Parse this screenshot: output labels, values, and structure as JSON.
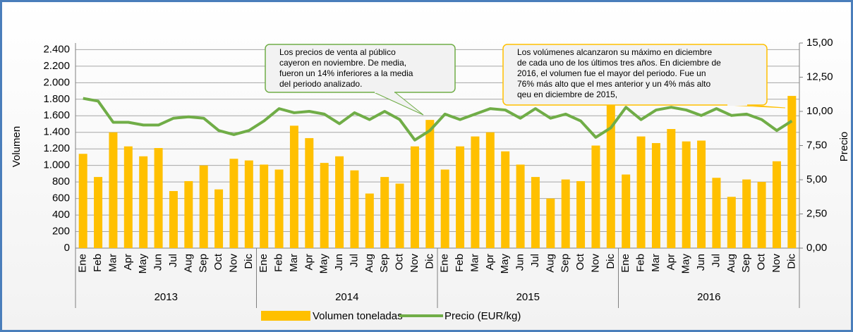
{
  "chart_data": {
    "type": "bar-line",
    "categories": [
      "Ene",
      "Feb",
      "Mar",
      "Apr",
      "May",
      "Jun",
      "Jul",
      "Aug",
      "Sep",
      "Oct",
      "Nov",
      "Dic",
      "Ene",
      "Feb",
      "Mar",
      "Apr",
      "May",
      "Jun",
      "Jul",
      "Aug",
      "Sep",
      "Oct",
      "Nov",
      "Dic",
      "Ene",
      "Feb",
      "Mar",
      "Apr",
      "May",
      "Jun",
      "Jul",
      "Aug",
      "Sep",
      "Oct",
      "Nov",
      "Dic",
      "Ene",
      "Feb",
      "Mar",
      "Apr",
      "May",
      "Jun",
      "Jul",
      "Aug",
      "Sep",
      "Oct",
      "Nov",
      "Dic"
    ],
    "years": [
      "2013",
      "2014",
      "2015",
      "2016"
    ],
    "ylabel": "Volumen",
    "y2label": "Precio",
    "series": [
      {
        "name": "Volumen toneladas",
        "type": "bar",
        "color": "#ffc000",
        "axis": "y",
        "values": [
          1140,
          860,
          1400,
          1230,
          1110,
          1210,
          690,
          810,
          1000,
          710,
          1080,
          1060,
          1010,
          950,
          1480,
          1330,
          1030,
          1110,
          940,
          660,
          860,
          780,
          1230,
          1550,
          950,
          1230,
          1350,
          1400,
          1170,
          1010,
          860,
          600,
          830,
          810,
          1240,
          1770,
          890,
          1350,
          1270,
          1440,
          1290,
          1300,
          850,
          620,
          830,
          800,
          1050,
          1840
        ]
      },
      {
        "name": "Precio (EUR/kg)",
        "type": "line",
        "color": "#70ad47",
        "axis": "y2",
        "values": [
          10.95,
          10.75,
          9.2,
          9.2,
          9.0,
          9.0,
          9.5,
          9.6,
          9.5,
          8.6,
          8.3,
          8.6,
          9.3,
          10.2,
          9.9,
          10.0,
          9.8,
          9.1,
          9.9,
          9.4,
          10.0,
          9.4,
          7.9,
          8.6,
          9.8,
          9.4,
          9.8,
          10.2,
          10.1,
          9.5,
          10.2,
          9.5,
          9.8,
          9.3,
          8.1,
          8.8,
          10.3,
          9.4,
          10.1,
          10.3,
          10.1,
          9.7,
          10.2,
          9.7,
          9.8,
          9.4,
          8.6,
          9.3
        ]
      }
    ],
    "ylim": [
      0,
      2480
    ],
    "yticks": [
      0,
      200,
      400,
      600,
      800,
      {
        "value": 1000,
        "label": "1.000"
      },
      {
        "value": 1200,
        "label": "1.200"
      },
      {
        "value": 1400,
        "label": "1.400"
      },
      {
        "value": 1600,
        "label": "1.600"
      },
      {
        "value": 1800,
        "label": "1.800"
      },
      {
        "value": 2000,
        "label": "2.000"
      },
      {
        "value": 2200,
        "label": "2.200"
      },
      {
        "value": 2400,
        "label": "2.400"
      }
    ],
    "y2lim": [
      0,
      15
    ],
    "y2ticks": [
      {
        "value": 0,
        "label": "0,00"
      },
      {
        "value": 2.5,
        "label": "2,50"
      },
      {
        "value": 5,
        "label": "5,00"
      },
      {
        "value": 7.5,
        "label": "7,50"
      },
      {
        "value": 10,
        "label": "10,00"
      },
      {
        "value": 12.5,
        "label": "12,50"
      },
      {
        "value": 15,
        "label": "15,00"
      }
    ],
    "grid": true,
    "annotations": [
      {
        "color": "#70ad47",
        "lines": [
          "Los precios de venta  al público",
          "cayeron  en noviembre.  De media,",
          "fueron un 14% inferiores a la media",
          "del periodo analizado."
        ]
      },
      {
        "color": "#ffc000",
        "lines": [
          "Los volúmenes  alcanzaron su máximo  en diciembre",
          "de cada uno de los últimos tres años.  En diciembre de",
          "2016,  el volumen fue el mayor del periodo. Fue un",
          "76% más alto que el mes anterior y un 4% más alto",
          "qeu en diciembre de 2015,"
        ]
      }
    ]
  }
}
